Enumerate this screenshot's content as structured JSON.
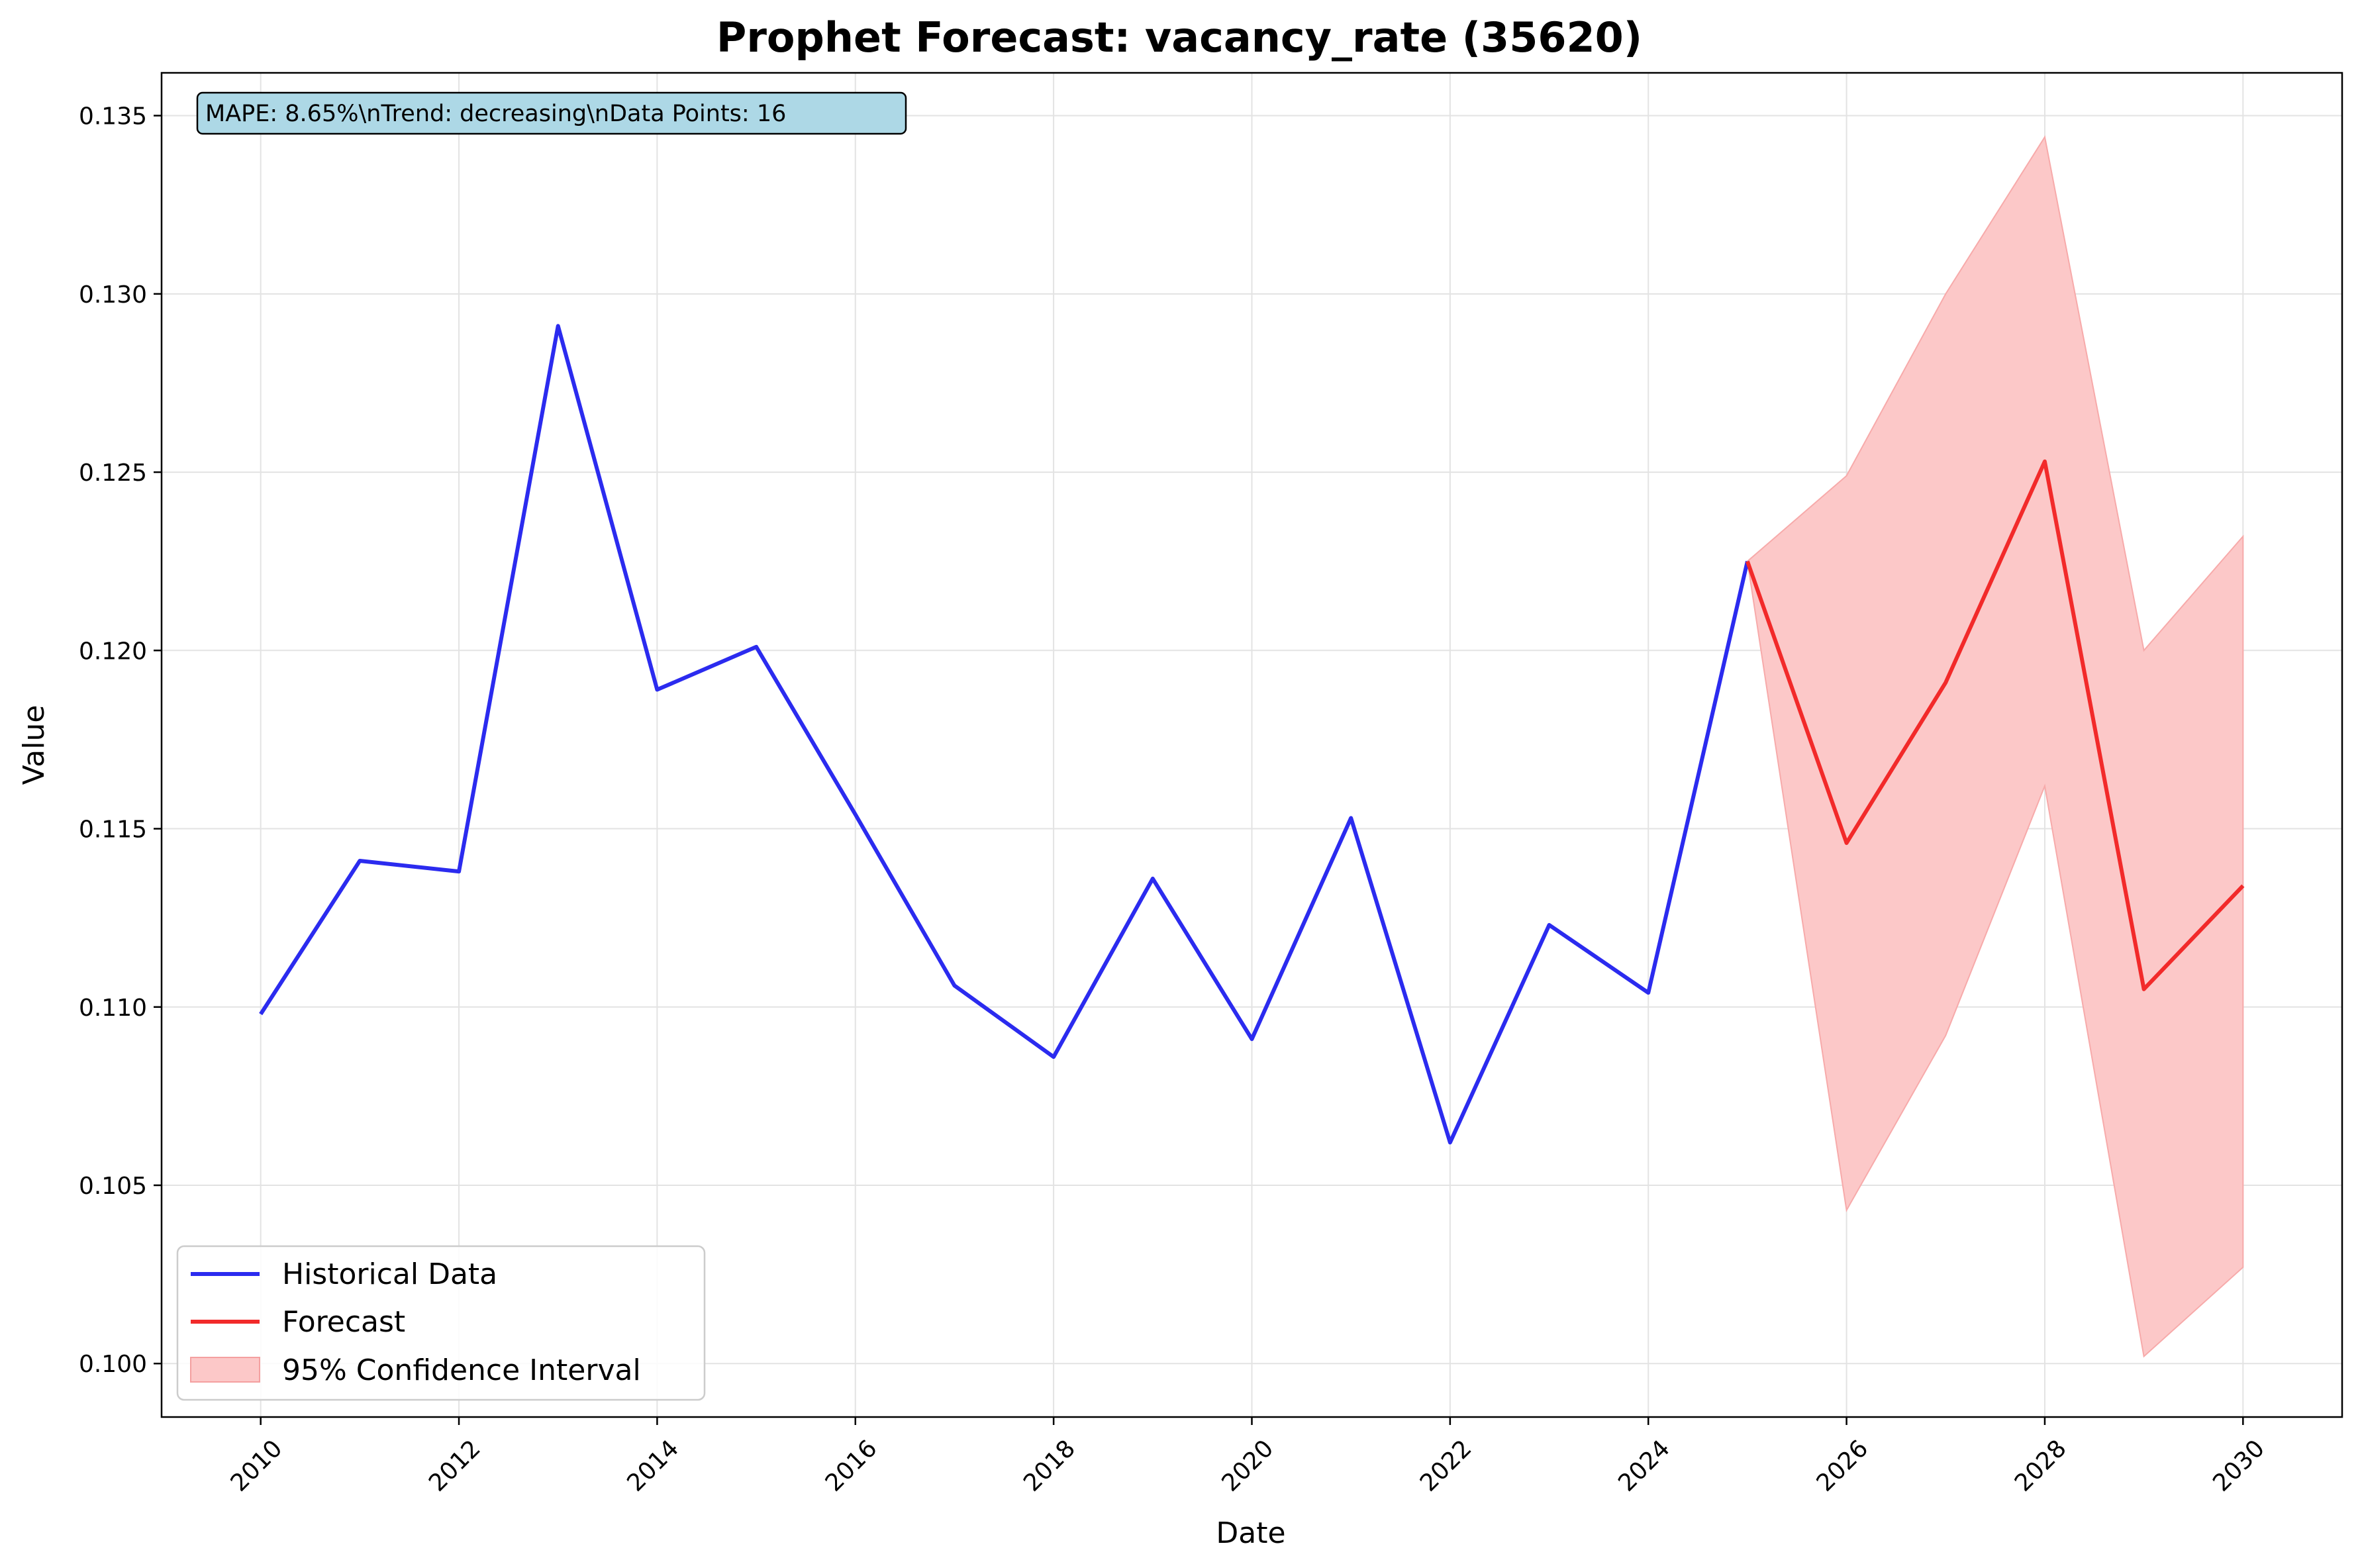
{
  "chart_data": {
    "type": "line",
    "title": "Prophet Forecast: vacancy_rate (35620)",
    "xlabel": "Date",
    "ylabel": "Value",
    "xlim": [
      2009,
      2031
    ],
    "ylim": [
      0.0985,
      0.1362
    ],
    "x_ticks": [
      "2010",
      "2012",
      "2014",
      "2016",
      "2018",
      "2020",
      "2022",
      "2024",
      "2026",
      "2028",
      "2030"
    ],
    "y_ticks": [
      "0.100",
      "0.105",
      "0.110",
      "0.115",
      "0.120",
      "0.125",
      "0.130",
      "0.135"
    ],
    "grid": true,
    "legend_position": "lower-left",
    "annotation": "MAPE: 8.65%\\nTrend: decreasing\\nData Points: 16",
    "series": [
      {
        "name": "Historical Data",
        "color": "#2b2bef",
        "x": [
          2010,
          2011,
          2012,
          2013,
          2014,
          2015,
          2016,
          2017,
          2018,
          2019,
          2020,
          2021,
          2022,
          2023,
          2024,
          2025
        ],
        "values": [
          0.1098,
          0.1141,
          0.1138,
          0.1291,
          0.1189,
          0.1201,
          0.1154,
          0.1106,
          0.1086,
          0.1136,
          0.1091,
          0.1153,
          0.1062,
          0.1123,
          0.1104,
          0.1225
        ]
      },
      {
        "name": "Forecast",
        "color": "#f22a2a",
        "x": [
          2025,
          2026,
          2027,
          2028,
          2029,
          2030
        ],
        "values": [
          0.1225,
          0.1146,
          0.1191,
          0.1253,
          0.1105,
          0.1134
        ]
      }
    ],
    "interval": {
      "name": "95% Confidence Interval",
      "color": "#fcc8c8",
      "x": [
        2025,
        2026,
        2027,
        2028,
        2029,
        2030
      ],
      "lower": [
        0.1225,
        0.1043,
        0.1092,
        0.1162,
        0.1002,
        0.1027
      ],
      "upper": [
        0.1225,
        0.1249,
        0.13,
        0.1344,
        0.12,
        0.1232
      ]
    }
  }
}
